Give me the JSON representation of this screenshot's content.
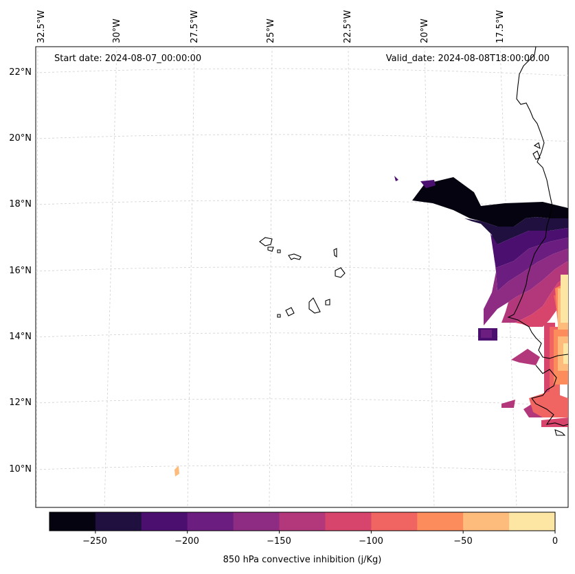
{
  "title_left": "Start date: 2024-08-07_00:00:00",
  "title_right": "Valid_date: 2024-08-08T18:00:00.00",
  "lon_labels": [
    "32.5°W",
    "30°W",
    "27.5°W",
    "25°W",
    "22.5°W",
    "20°W",
    "17.5°W"
  ],
  "lat_labels": [
    "22°N",
    "20°N",
    "18°N",
    "16°N",
    "14°N",
    "12°N",
    "10°N"
  ],
  "colorbar": {
    "label": "850 hPa convective inhibition (j/Kg)",
    "ticks": [
      "−250",
      "−200",
      "−150",
      "−100",
      "−50",
      "0"
    ],
    "levels": [
      -275,
      -250,
      -225,
      -200,
      -175,
      -150,
      -125,
      -100,
      -75,
      -50,
      -25,
      0
    ],
    "colors": [
      "#05030f",
      "#20103f",
      "#4b0f6f",
      "#6c1d80",
      "#8e2b82",
      "#b3377b",
      "#d8456c",
      "#f06462",
      "#fc8c5c",
      "#fdbb7c",
      "#fde6a3"
    ]
  }
}
